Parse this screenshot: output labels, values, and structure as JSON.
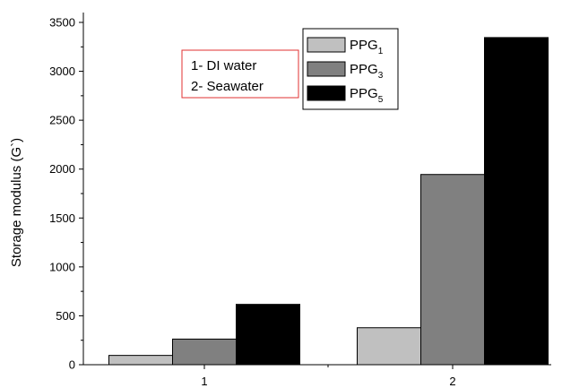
{
  "chart_data": {
    "type": "bar",
    "title": "",
    "xlabel": "",
    "ylabel": "Storage modulus (G`)",
    "categories": [
      "1",
      "2"
    ],
    "series": [
      {
        "name": "PPG",
        "subscript": "1",
        "color": "#c0c0c0",
        "values": [
          95,
          378
        ]
      },
      {
        "name": "PPG",
        "subscript": "3",
        "color": "#808080",
        "values": [
          262,
          1945
        ]
      },
      {
        "name": "PPG",
        "subscript": "5",
        "color": "#000000",
        "values": [
          617,
          3345
        ]
      }
    ],
    "ylim": [
      0,
      3500
    ],
    "yticks": [
      0,
      500,
      1000,
      1500,
      2000,
      2500,
      3000,
      3500
    ],
    "grid": false,
    "legend_position": "top-right",
    "annotation": {
      "lines": [
        "1- DI water",
        "2- Seawater"
      ],
      "border_color": "#e03030"
    }
  }
}
